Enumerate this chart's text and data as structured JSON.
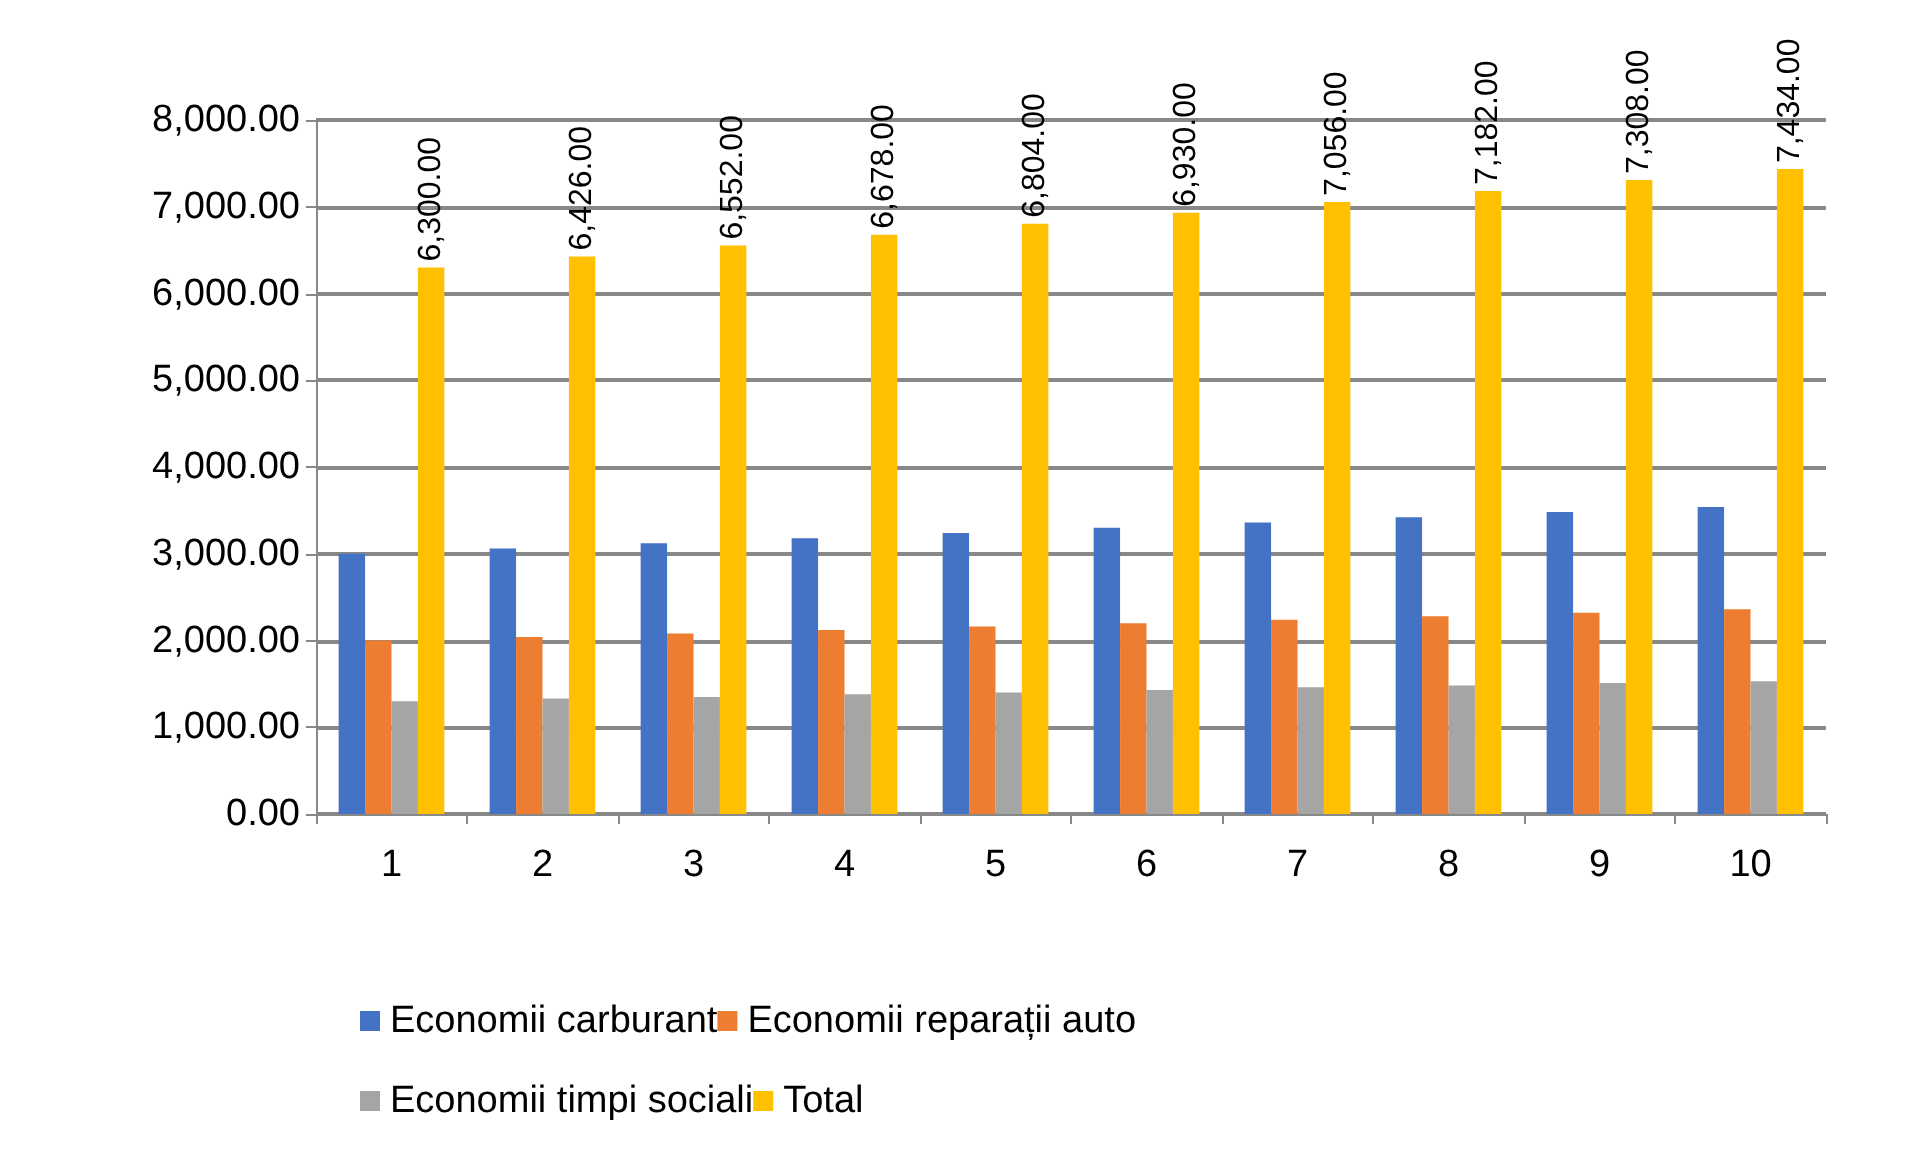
{
  "chart_data": {
    "type": "bar",
    "categories": [
      "1",
      "2",
      "3",
      "4",
      "5",
      "6",
      "7",
      "8",
      "9",
      "10"
    ],
    "series": [
      {
        "name": "Economii carburant",
        "color": "#4472c4",
        "values": [
          3000,
          3060,
          3120,
          3180,
          3240,
          3300,
          3360,
          3420,
          3480,
          3540
        ]
      },
      {
        "name": "Economii reparații auto",
        "color": "#ed7d31",
        "values": [
          2000,
          2040,
          2080,
          2120,
          2160,
          2200,
          2240,
          2280,
          2320,
          2360
        ]
      },
      {
        "name": "Economii timpi sociali",
        "color": "#a5a5a5",
        "values": [
          1300,
          1330,
          1350,
          1380,
          1400,
          1430,
          1460,
          1480,
          1510,
          1530
        ]
      },
      {
        "name": "Total",
        "color": "#ffc000",
        "values": [
          6300,
          6426,
          6552,
          6678,
          6804,
          6930,
          7056,
          7182,
          7308,
          7434
        ],
        "value_labels": [
          "6,300.00",
          "6,426.00",
          "6,552.00",
          "6,678.00",
          "6,804.00",
          "6,930.00",
          "7,056.00",
          "7,182.00",
          "7,308.00",
          "7,434.00"
        ]
      }
    ],
    "ylim": [
      0,
      8000
    ],
    "yticks": [
      {
        "value": 0,
        "label": "0.00"
      },
      {
        "value": 1000,
        "label": "1,000.00"
      },
      {
        "value": 2000,
        "label": "2,000.00"
      },
      {
        "value": 3000,
        "label": "3,000.00"
      },
      {
        "value": 4000,
        "label": "4,000.00"
      },
      {
        "value": 5000,
        "label": "5,000.00"
      },
      {
        "value": 6000,
        "label": "6,000.00"
      },
      {
        "value": 7000,
        "label": "7,000.00"
      },
      {
        "value": 8000,
        "label": "8,000.00"
      }
    ],
    "grid": "y",
    "legend": "bottom"
  }
}
